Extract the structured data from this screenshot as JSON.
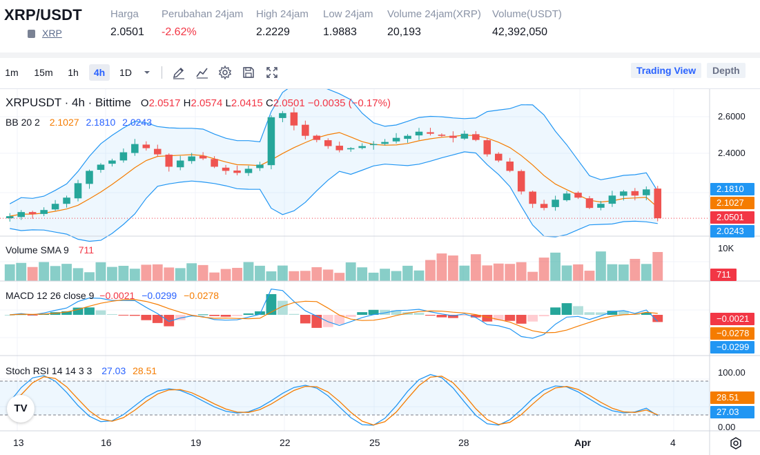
{
  "header": {
    "pair": "XRP/USDT",
    "asset_link": "XRP",
    "stats": [
      {
        "label": "Harga",
        "value": "2.0501",
        "negative": false
      },
      {
        "label": "Perubahan 24jam",
        "value": "-2.62%",
        "negative": true
      },
      {
        "label": "High 24jam",
        "value": "2.2229",
        "negative": false
      },
      {
        "label": "Low 24jam",
        "value": "1.9883",
        "negative": false
      },
      {
        "label": "Volume 24jam(XRP)",
        "value": "20,193",
        "negative": false
      },
      {
        "label": "Volume(USDT)",
        "value": "42,392,050",
        "negative": false
      }
    ]
  },
  "toolbar": {
    "timeframes": [
      "1m",
      "15m",
      "1h",
      "4h",
      "1D"
    ],
    "active_timeframe": "4h",
    "icons": [
      "chevron-down-icon",
      "draw-pen-icon",
      "indicator-icon",
      "gear-icon",
      "save-icon",
      "fullscreen-icon"
    ],
    "trading_view_label": "Trading View",
    "depth_label": "Depth"
  },
  "legend": {
    "symbol": "XRPUSDT · 4h · Bittime",
    "o_label": "O",
    "o_value": "2.0517",
    "h_label": "H",
    "h_value": "2.0574",
    "l_label": "L",
    "l_value": "2.0415",
    "c_label": "C",
    "c_value": "2.0501",
    "change": "−0.0035 (−0.17%)"
  },
  "indicators": {
    "bb": {
      "label": "BB 20 2",
      "mid": "2.1027",
      "upper": "2.1810",
      "lower": "2.0243"
    },
    "volume": {
      "label": "Volume SMA 9",
      "value": "711"
    },
    "macd": {
      "label": "MACD 12 26 close 9",
      "hist": "−0.0021",
      "macd": "−0.0299",
      "signal": "−0.0278"
    },
    "stoch": {
      "label": "Stoch RSI 14 14 3 3",
      "k": "27.03",
      "d": "28.51"
    }
  },
  "price_axis": {
    "ticks": [
      "2.6000",
      "2.4000"
    ],
    "tags": {
      "upper": "2.1810",
      "mid": "2.1027",
      "last": "2.0501",
      "lower": "2.0243"
    }
  },
  "volume_axis": {
    "tick": "10K",
    "tag": "711"
  },
  "macd_axis": {
    "tags": {
      "hist": "−0.0021",
      "signal": "−0.0278",
      "macd": "−0.0299"
    }
  },
  "stoch_axis": {
    "ticks": [
      "100.00",
      "0.00"
    ],
    "tags": {
      "d": "28.51",
      "k": "27.03"
    }
  },
  "x_axis": {
    "labels": [
      "13",
      "16",
      "19",
      "22",
      "25",
      "28",
      "Apr",
      "4"
    ]
  },
  "colors": {
    "up": "#26a69a",
    "down": "#ef5350",
    "bb_band": "#2196f3",
    "bb_mid": "#f57c00",
    "macd_line": "#2196f3",
    "signal_line": "#f57c00",
    "last_price": "#f23645",
    "accent": "#2962ff"
  },
  "chart_data": {
    "type": "candlestick",
    "timeframe": "4h",
    "x_labels": [
      "13",
      "16",
      "19",
      "22",
      "25",
      "28",
      "Apr",
      "4"
    ],
    "price_ylim": [
      1.98,
      2.66
    ],
    "closes_approx": [
      2.06,
      2.08,
      2.07,
      2.09,
      2.12,
      2.15,
      2.22,
      2.28,
      2.31,
      2.33,
      2.37,
      2.41,
      2.39,
      2.36,
      2.3,
      2.33,
      2.35,
      2.34,
      2.3,
      2.28,
      2.27,
      2.29,
      2.31,
      2.54,
      2.56,
      2.5,
      2.45,
      2.43,
      2.4,
      2.38,
      2.39,
      2.4,
      2.41,
      2.42,
      2.44,
      2.45,
      2.47,
      2.46,
      2.45,
      2.44,
      2.46,
      2.43,
      2.36,
      2.33,
      2.28,
      2.18,
      2.12,
      2.1,
      2.14,
      2.17,
      2.15,
      2.1,
      2.12,
      2.16,
      2.18,
      2.16,
      2.19,
      2.05
    ],
    "bb": {
      "period": 20,
      "mult": 2,
      "upper": 2.181,
      "mid": 2.1027,
      "lower": 2.0243
    },
    "last_price": 2.0501,
    "volume_last": 711,
    "macd": {
      "hist": -0.0021,
      "macd": -0.0299,
      "signal": -0.0278
    },
    "stoch_rsi": {
      "k": 27.03,
      "d": 28.51,
      "ylim": [
        0,
        100
      ]
    }
  }
}
